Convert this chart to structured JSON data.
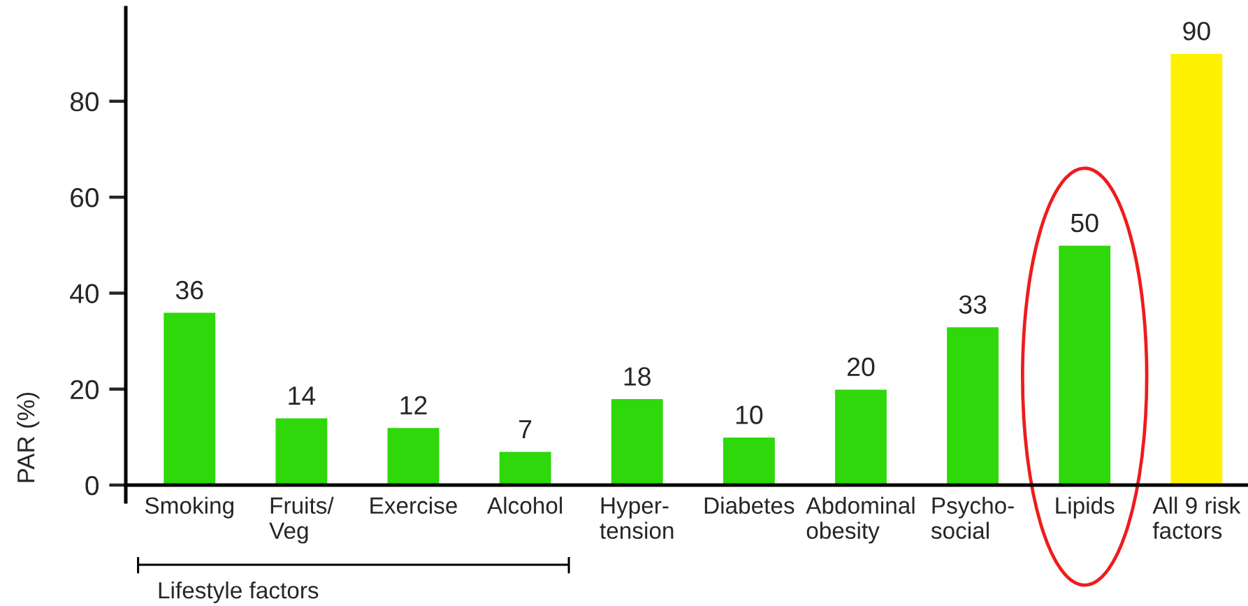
{
  "chart_data": {
    "type": "bar",
    "categories": [
      "Smoking",
      "Fruits/\nVeg",
      "Exercise",
      "Alcohol",
      "Hyper-\ntension",
      "Diabetes",
      "Abdominal\nobesity",
      "Psycho-\nsocial",
      "Lipids",
      "All 9 risk\nfactors"
    ],
    "values": [
      36,
      14,
      12,
      7,
      18,
      10,
      20,
      33,
      50,
      90
    ],
    "colors": [
      "#2ed80a",
      "#2ed80a",
      "#2ed80a",
      "#2ed80a",
      "#2ed80a",
      "#2ed80a",
      "#2ed80a",
      "#2ed80a",
      "#2ed80a",
      "#fff200"
    ],
    "ylabel": "PAR (%)",
    "ylim": [
      -3.5,
      99.5
    ],
    "yticks": [
      0,
      20,
      40,
      60,
      80
    ],
    "data_labels": true,
    "annotations": [
      "Lifestyle factors"
    ]
  }
}
